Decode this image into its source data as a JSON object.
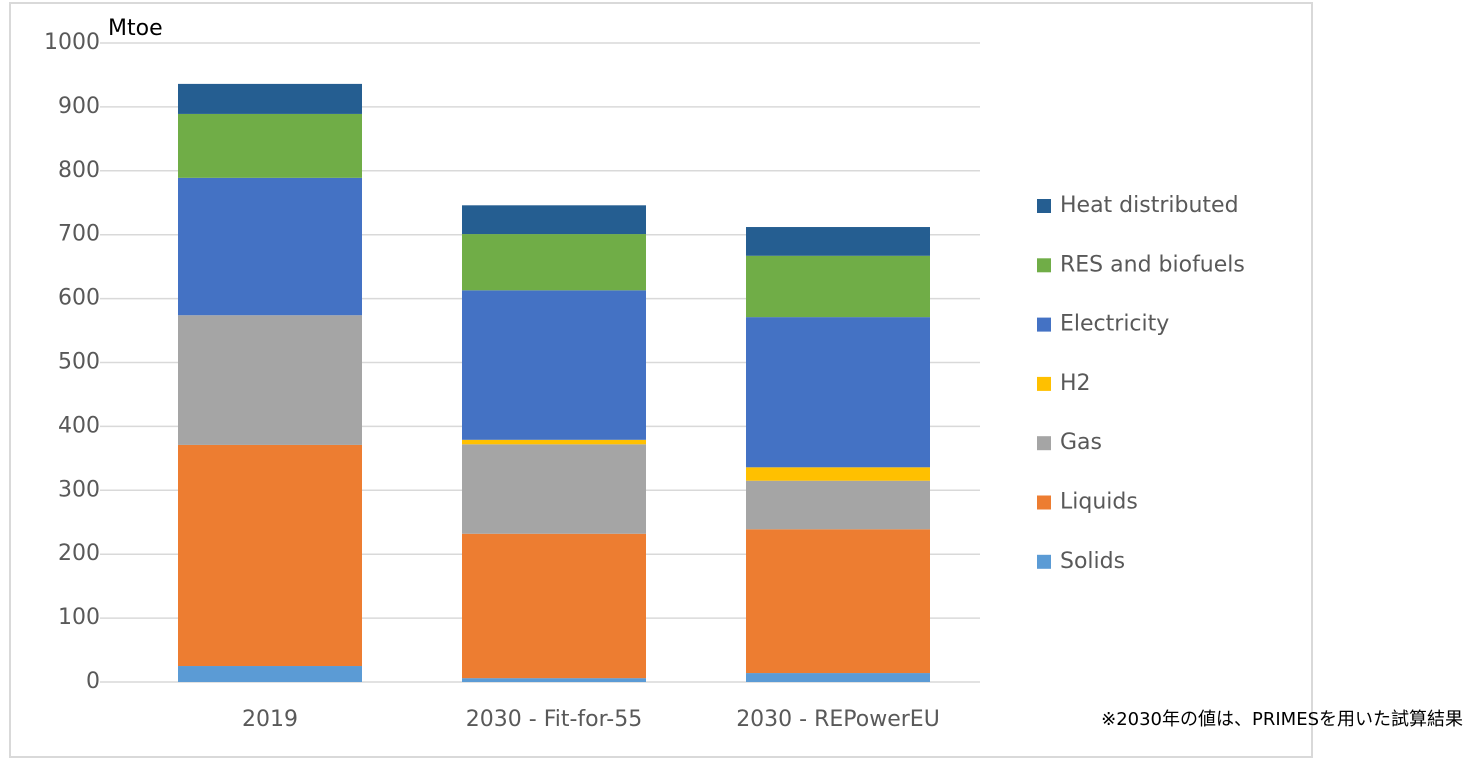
{
  "chart_data": {
    "type": "stacked_bar",
    "y_axis_label": "Mtoe",
    "categories": [
      "2019",
      "2030 - Fit-for-55",
      "2030 - REPowerEU"
    ],
    "series": [
      {
        "name": "Solids",
        "color": "#5b9bd5",
        "values": [
          25,
          6,
          14
        ]
      },
      {
        "name": "Liquids",
        "color": "#ed7d31",
        "values": [
          346,
          226,
          225
        ]
      },
      {
        "name": "Gas",
        "color": "#a5a5a5",
        "values": [
          203,
          140,
          76
        ]
      },
      {
        "name": "H2",
        "color": "#ffc000",
        "values": [
          0,
          7,
          21
        ]
      },
      {
        "name": "Electricity",
        "color": "#4472c4",
        "values": [
          215,
          234,
          235
        ]
      },
      {
        "name": "RES and biofuels",
        "color": "#70ad47",
        "values": [
          100,
          88,
          96
        ]
      },
      {
        "name": "Heat distributed",
        "color": "#255e91",
        "values": [
          47,
          45,
          45
        ]
      }
    ],
    "ylim": [
      0,
      1000
    ],
    "yticks": [
      0,
      100,
      200,
      300,
      400,
      500,
      600,
      700,
      800,
      900,
      1000
    ],
    "grid": true,
    "legend": "right",
    "note": "※2030年の値は、PRIMESを用いた試算結果"
  }
}
